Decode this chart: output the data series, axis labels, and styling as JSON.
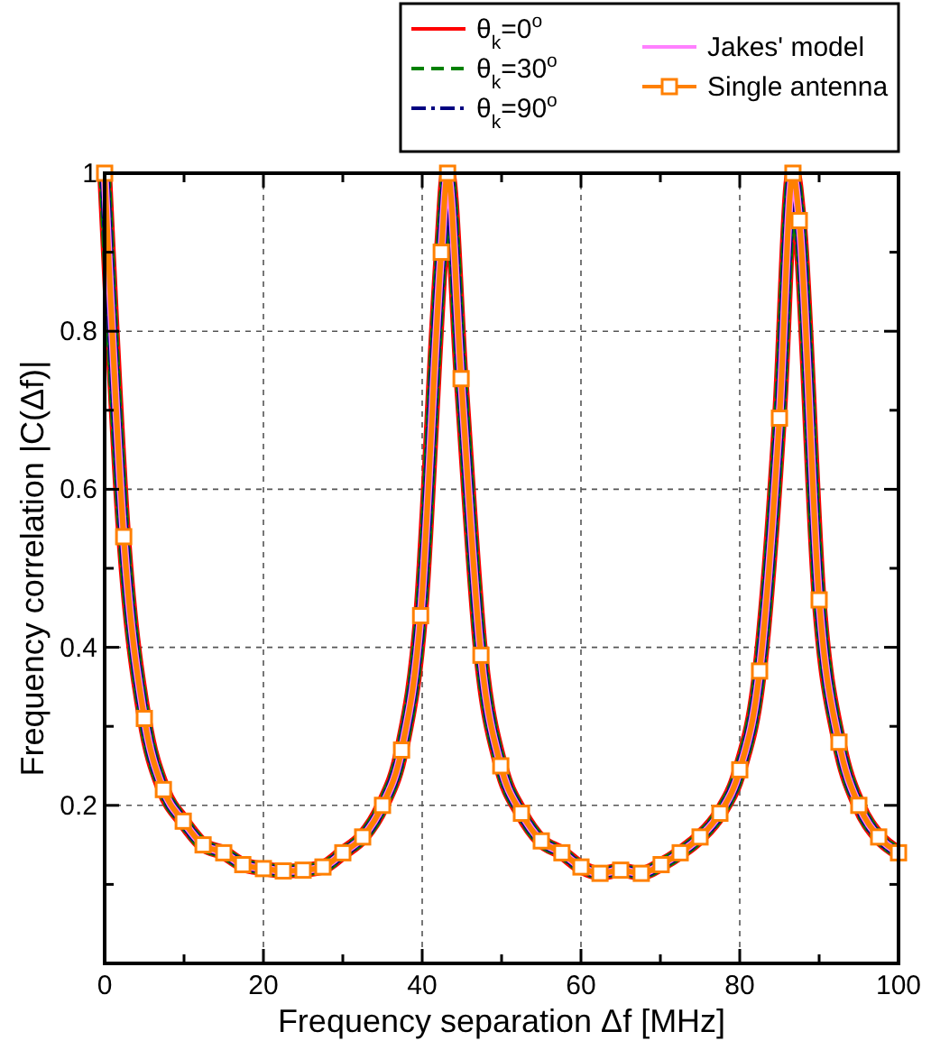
{
  "chart_data": {
    "type": "line",
    "xlabel": "Frequency separation  Δf [MHz]",
    "ylabel": "Frequency correlation  |C(Δf)|",
    "x": [
      0,
      2.4,
      5,
      7.4,
      9.9,
      12.4,
      15,
      17.4,
      20,
      22.5,
      25,
      27.5,
      30,
      32.5,
      35,
      37.4,
      39.8,
      42.4,
      43.2,
      44.9,
      47.4,
      49.9,
      52.5,
      55,
      57.6,
      60,
      62.4,
      65,
      67.6,
      70.1,
      72.5,
      75,
      77.5,
      80,
      82.5,
      85,
      86.7,
      87.5,
      90,
      92.5,
      95,
      97.5,
      100
    ],
    "series": [
      {
        "name": "θ$_{k}$=0$^{o}$",
        "color": "#ff0000",
        "line_style": "solid",
        "marker": "none",
        "values": [
          1,
          0.54,
          0.31,
          0.22,
          0.18,
          0.15,
          0.14,
          0.125,
          0.12,
          0.117,
          0.118,
          0.122,
          0.14,
          0.16,
          0.2,
          0.27,
          0.44,
          0.9,
          1,
          0.74,
          0.39,
          0.25,
          0.19,
          0.155,
          0.14,
          0.122,
          0.114,
          0.118,
          0.114,
          0.125,
          0.14,
          0.16,
          0.19,
          0.245,
          0.37,
          0.69,
          1,
          0.94,
          0.46,
          0.28,
          0.2,
          0.16,
          0.14
        ]
      },
      {
        "name": "θ$_{k}$=30$^{o}$",
        "color": "#008000",
        "line_style": "dashed",
        "marker": "none",
        "values": [
          1,
          0.54,
          0.31,
          0.22,
          0.18,
          0.15,
          0.14,
          0.125,
          0.12,
          0.117,
          0.118,
          0.122,
          0.14,
          0.16,
          0.2,
          0.27,
          0.44,
          0.9,
          1,
          0.74,
          0.39,
          0.25,
          0.19,
          0.155,
          0.14,
          0.122,
          0.114,
          0.118,
          0.114,
          0.125,
          0.14,
          0.16,
          0.19,
          0.245,
          0.37,
          0.69,
          1,
          0.94,
          0.46,
          0.28,
          0.2,
          0.16,
          0.14
        ]
      },
      {
        "name": "θ$_{k}$=90$^{o}$",
        "color": "#000080",
        "line_style": "dotted",
        "marker": "none",
        "values": [
          1,
          0.54,
          0.31,
          0.22,
          0.18,
          0.15,
          0.14,
          0.125,
          0.12,
          0.117,
          0.118,
          0.122,
          0.14,
          0.16,
          0.2,
          0.27,
          0.44,
          0.9,
          1,
          0.74,
          0.39,
          0.25,
          0.19,
          0.155,
          0.14,
          0.122,
          0.114,
          0.118,
          0.114,
          0.125,
          0.14,
          0.16,
          0.19,
          0.245,
          0.37,
          0.69,
          1,
          0.94,
          0.46,
          0.28,
          0.2,
          0.16,
          0.14
        ]
      },
      {
        "name": "Jakes' model",
        "color": "#ff80ff",
        "line_style": "solid",
        "marker": "none",
        "values": [
          1,
          0.54,
          0.31,
          0.22,
          0.18,
          0.15,
          0.14,
          0.125,
          0.12,
          0.117,
          0.118,
          0.122,
          0.14,
          0.16,
          0.2,
          0.27,
          0.44,
          0.9,
          1,
          0.74,
          0.39,
          0.25,
          0.19,
          0.155,
          0.14,
          0.122,
          0.114,
          0.118,
          0.114,
          0.125,
          0.14,
          0.16,
          0.19,
          0.245,
          0.37,
          0.69,
          1,
          0.94,
          0.46,
          0.28,
          0.2,
          0.16,
          0.14
        ]
      },
      {
        "name": "Single antenna",
        "color": "#ff8000",
        "line_style": "solid",
        "marker": "square",
        "values": [
          1,
          0.54,
          0.31,
          0.22,
          0.18,
          0.15,
          0.14,
          0.125,
          0.12,
          0.117,
          0.118,
          0.122,
          0.14,
          0.16,
          0.2,
          0.27,
          0.44,
          0.9,
          1,
          0.74,
          0.39,
          0.25,
          0.19,
          0.155,
          0.14,
          0.122,
          0.114,
          0.118,
          0.114,
          0.125,
          0.14,
          0.16,
          0.19,
          0.245,
          0.37,
          0.69,
          1,
          0.94,
          0.46,
          0.28,
          0.2,
          0.16,
          0.14
        ]
      }
    ],
    "xlim": [
      0,
      100
    ],
    "xticks": [
      0,
      {
        "value": 10,
        "label": null
      },
      20,
      {
        "value": 30,
        "label": null
      },
      40,
      {
        "value": 50,
        "label": null
      },
      60,
      {
        "value": 70,
        "label": null
      },
      80,
      {
        "value": 90,
        "label": null
      },
      100
    ],
    "ylim": [
      0,
      1
    ],
    "yticks": [
      {
        "value": 0,
        "label": null
      },
      {
        "value": 0.1,
        "label": null
      },
      0.2,
      {
        "value": 0.3,
        "label": null
      },
      0.4,
      {
        "value": 0.5,
        "label": null
      },
      0.6,
      {
        "value": 0.7,
        "label": null
      },
      0.8,
      {
        "value": 0.9,
        "label": null
      },
      1
    ],
    "grid": true,
    "legend": "top right"
  }
}
